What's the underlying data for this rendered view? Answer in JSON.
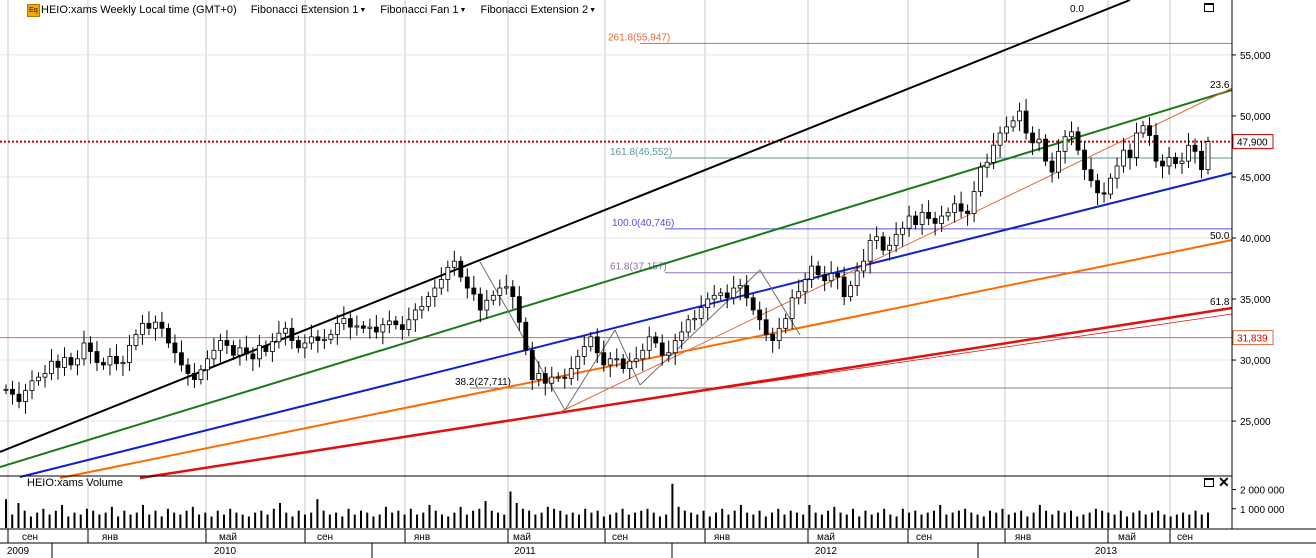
{
  "toolbar": {
    "symbol": "HEIO:xams Weekly Local time (GMT+0)",
    "tools": [
      "Fibonacci Extension 1",
      "Fibonacci Fan 1",
      "Fibonacci Extension 2"
    ]
  },
  "volume_panel_title": "HEIO:xams Volume",
  "colors": {
    "candle": "#000000",
    "fan_black": "#000000",
    "fan_green": "#1a7a1a",
    "fan_blue": "#1020d0",
    "fan_orange": "#ff6a00",
    "fan_red": "#e01010",
    "ext1": "#e06a3a",
    "level_blue": "#5050e0",
    "level_purple": "#9070b0",
    "level_teal": "#5a9a9a",
    "current_price_line": "#d00000"
  },
  "chart_data": [
    {
      "type": "candlestick",
      "title": "HEIO:xams Weekly Local time (GMT+0)",
      "x_axis": {
        "month_labels": [
          "сен",
          "янв",
          "май",
          "сен",
          "янв",
          "май",
          "сен",
          "янв",
          "май",
          "сен",
          "янв",
          "май",
          "сен"
        ],
        "year_labels": [
          "2009",
          "2010",
          "2011",
          "2012",
          "2013"
        ]
      },
      "y_axis": {
        "ticks": [
          25000,
          30000,
          35000,
          40000,
          45000,
          50000,
          55000
        ],
        "tick_labels": [
          "25,000",
          "30,000",
          "35,000",
          "40,000",
          "45,000",
          "50,000",
          "55,000"
        ],
        "ylim": [
          20500,
          59500
        ],
        "position": "right"
      },
      "close_series_approx": [
        27.6,
        27.2,
        26.6,
        27.5,
        28.3,
        28.6,
        28.9,
        29.9,
        29.4,
        30.2,
        29.6,
        30.1,
        31.4,
        30.7,
        29.8,
        29.6,
        30.3,
        29.7,
        29.8,
        31.2,
        32.1,
        33.0,
        32.6,
        33.1,
        32.6,
        31.4,
        30.6,
        29.6,
        28.9,
        28.4,
        29.2,
        30.1,
        30.8,
        31.6,
        31.2,
        30.4,
        31.0,
        30.5,
        30.1,
        31.2,
        30.7,
        31.5,
        32.2,
        32.6,
        31.6,
        31.0,
        31.4,
        31.9,
        31.6,
        31.7,
        32.1,
        33.0,
        33.4,
        32.7,
        32.8,
        32.6,
        32.7,
        32.3,
        32.9,
        33.2,
        32.9,
        32.5,
        33.3,
        34.1,
        34.4,
        35.2,
        35.9,
        36.6,
        37.6,
        38.1,
        36.8,
        35.9,
        35.4,
        34.1,
        34.9,
        35.3,
        35.9,
        36.0,
        35.2,
        33.1,
        30.8,
        28.4,
        28.9,
        28.1,
        28.6,
        28.6,
        28.5,
        29.3,
        30.3,
        31.1,
        31.9,
        30.6,
        29.6,
        30.1,
        30.1,
        29.3,
        29.9,
        30.1,
        30.8,
        31.9,
        31.4,
        30.4,
        30.6,
        31.6,
        32.3,
        33.3,
        33.4,
        34.3,
        35.0,
        35.3,
        35.5,
        35.1,
        35.9,
        36.1,
        35.1,
        34.1,
        33.3,
        32.1,
        31.6,
        32.6,
        33.4,
        35.1,
        35.6,
        36.6,
        37.7,
        37.0,
        36.5,
        37.1,
        36.8,
        35.2,
        36.1,
        37.3,
        38.1,
        39.8,
        40.1,
        39.0,
        39.4,
        40.3,
        40.8,
        41.8,
        41.1,
        42.1,
        41.6,
        41.2,
        41.8,
        42.1,
        42.8,
        42.2,
        42.0,
        43.8,
        45.8,
        46.2,
        47.6,
        48.6,
        49.1,
        49.6,
        50.4,
        48.6,
        47.8,
        48.1,
        46.3,
        45.4,
        47.1,
        48.3,
        48.7,
        47.2,
        45.6,
        44.7,
        43.7,
        43.6,
        44.9,
        45.9,
        47.2,
        46.6,
        48.6,
        49.2,
        48.4,
        46.3,
        45.9,
        46.6,
        46.1,
        46.3,
        47.6,
        47.1,
        45.6,
        47.9
      ],
      "price_label": "47,900",
      "line_label": "31,839",
      "horizontal_levels": [
        {
          "label": "261.8(55,947)",
          "value": 55947,
          "color": "#e06a3a"
        },
        {
          "label": "161.8(46,552)",
          "value": 46552,
          "color": "#5a9a9a"
        },
        {
          "label": "100.0(40,746)",
          "value": 40746,
          "color": "#5050e0"
        },
        {
          "label": "61.8(37,157)",
          "value": 37157,
          "color": "#9070b0"
        },
        {
          "label": "38.2(27,711)",
          "value": 27711,
          "color": "#808080"
        },
        {
          "label": "",
          "value": 31839,
          "color": "#e06a3a"
        },
        {
          "label": "",
          "value": 47900,
          "color": "#d00000"
        }
      ],
      "fan_labels": [
        "0.0",
        "23.6",
        "50.0",
        "61.8"
      ]
    },
    {
      "type": "bar",
      "title": "HEIO:xams Volume",
      "y_axis": {
        "ticks": [
          1000000,
          2000000
        ],
        "tick_labels": [
          "1 000 000",
          "2 000 000"
        ],
        "ylim": [
          0,
          2600000
        ]
      },
      "values_approx": [
        1500000,
        700000,
        1300000,
        900000,
        600000,
        800000,
        1000000,
        700000,
        900000,
        1200000,
        600000,
        800000,
        700000,
        1000000,
        900000,
        700000,
        800000,
        1100000,
        600000,
        900000,
        700000,
        800000,
        1200000,
        700000,
        900000,
        600000,
        1000000,
        800000,
        700000,
        900000,
        1100000,
        700000,
        800000,
        600000,
        900000,
        700000,
        1000000,
        800000,
        700000,
        600000,
        800000,
        900000,
        700000,
        1000000,
        1300000,
        800000,
        600000,
        900000,
        700000,
        800000,
        1500000,
        900000,
        700000,
        800000,
        600000,
        1000000,
        700000,
        900000,
        800000,
        600000,
        700000,
        1100000,
        800000,
        900000,
        700000,
        1000000,
        700000,
        800000,
        1200000,
        900000,
        700000,
        600000,
        800000,
        1100000,
        700000,
        900000,
        1000000,
        1400000,
        900000,
        800000,
        700000,
        1900000,
        1300000,
        1000000,
        900000,
        700000,
        800000,
        1100000,
        1000000,
        900000,
        700000,
        800000,
        700000,
        1000000,
        800000,
        900000,
        600000,
        700000,
        800000,
        1000000,
        700000,
        800000,
        900000,
        1000000,
        800000,
        600000,
        700000,
        2300000,
        1100000,
        900000,
        800000,
        700000,
        900000,
        600000,
        800000,
        1000000,
        700000,
        900000,
        1200000,
        800000,
        700000,
        900000,
        600000,
        800000,
        1000000,
        700000,
        900000,
        800000,
        700000,
        1200000,
        800000,
        700000,
        900000,
        1100000,
        800000,
        700000,
        1000000,
        600000,
        900000,
        700000,
        800000,
        1000000,
        700000,
        600000,
        1000000,
        800000,
        900000,
        700000,
        800000,
        900000,
        1200000,
        700000,
        800000,
        900000,
        1000000,
        800000,
        700000,
        600000,
        900000,
        800000,
        1000000,
        700000,
        800000,
        900000,
        600000,
        800000,
        1200000,
        900000,
        700000,
        900000,
        800000,
        900000,
        600000,
        700000,
        800000,
        1000000,
        900000,
        800000,
        700000,
        900000,
        600000,
        800000,
        900000,
        700000,
        800000,
        900000,
        700000,
        600000,
        700000,
        800000,
        700000,
        900000,
        700000,
        800000
      ]
    }
  ]
}
